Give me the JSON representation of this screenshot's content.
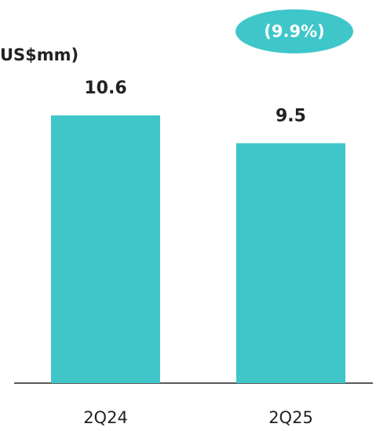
{
  "chart_data": {
    "type": "bar",
    "title": "US$mm)",
    "annotation": "(9.9%)",
    "categories": [
      "2Q24",
      "2Q25"
    ],
    "values": [
      10.6,
      9.5
    ],
    "color": "#3ec6c9",
    "ylim": [
      0,
      12
    ]
  }
}
